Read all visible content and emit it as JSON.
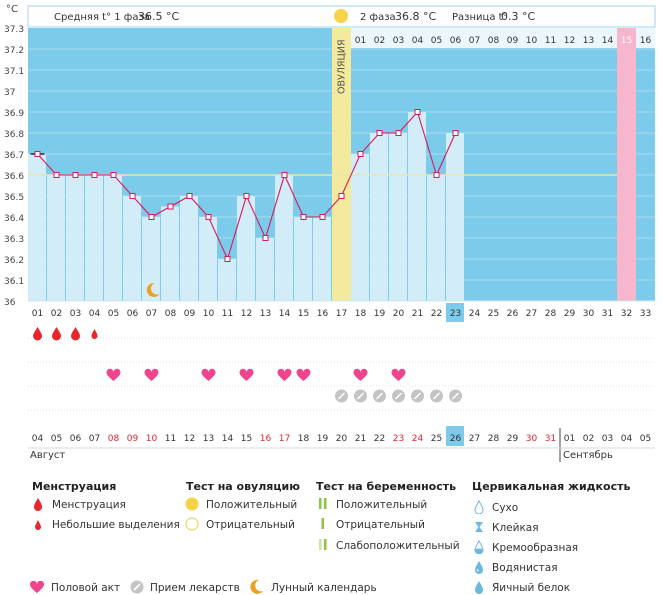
{
  "header": {
    "degree_unit": "°C",
    "phase1_label": "Средняя t° 1 фаза",
    "phase1_value": "36.5 °C",
    "phase2_label": "2 фаза",
    "phase2_value": "36.8 °C",
    "diff_label": "Разница t°",
    "diff_value": "0.3 °C"
  },
  "ovulation_label": "ОВУЛЯЦИЯ",
  "colors": {
    "chart_bg": "#7dcbea",
    "bar_fill": "#d2edf8",
    "line": "#d61a5c",
    "coverline": "#e8e8b0",
    "ovulation": "#f3ea9e",
    "period_expected": "#f7b6cb",
    "menstruation": "#e8272d",
    "heart": "#f0458c",
    "pill": "#c4c4c4",
    "moon": "#f0a020",
    "highlight": "#7dcbea"
  },
  "chart_data": {
    "type": "bar",
    "title": "",
    "ylabel": "°C",
    "ylim": [
      36.0,
      37.3
    ],
    "yticks": [
      "37.3",
      "37.2",
      "37.1",
      "37",
      "36.9",
      "36.8",
      "36.7",
      "36.6",
      "36.5",
      "36.4",
      "36.3",
      "36.2",
      "36.1",
      "36"
    ],
    "days": [
      "01",
      "02",
      "03",
      "04",
      "05",
      "06",
      "07",
      "08",
      "09",
      "10",
      "11",
      "12",
      "13",
      "14",
      "15",
      "16",
      "17",
      "18",
      "19",
      "20",
      "21",
      "22",
      "23",
      "24",
      "25",
      "26",
      "27",
      "28",
      "29",
      "30",
      "31",
      "32",
      "33"
    ],
    "values": [
      36.7,
      36.6,
      36.6,
      36.6,
      36.6,
      36.5,
      36.4,
      36.45,
      36.5,
      36.4,
      36.2,
      36.5,
      36.3,
      36.6,
      36.4,
      36.4,
      36.5,
      36.7,
      36.8,
      36.8,
      36.9,
      36.6,
      36.8,
      null,
      null,
      null,
      null,
      null,
      null,
      null,
      null,
      null,
      null
    ],
    "coverline": 36.6,
    "ovulation_day": "17",
    "highlight_day": "23",
    "phase2_days": [
      "01",
      "02",
      "03",
      "04",
      "05",
      "06",
      "07",
      "08",
      "09",
      "10",
      "11",
      "12",
      "13",
      "14",
      "15",
      "16"
    ],
    "expected_period_day": "32",
    "dates": [
      "04",
      "05",
      "06",
      "07",
      "08",
      "09",
      "10",
      "11",
      "12",
      "13",
      "14",
      "15",
      "16",
      "17",
      "18",
      "19",
      "20",
      "21",
      "22",
      "23",
      "24",
      "25",
      "26",
      "27",
      "28",
      "29",
      "30",
      "31",
      "01",
      "02",
      "03",
      "04",
      "05"
    ],
    "weekend_dates": [
      "08",
      "09",
      "10",
      "16",
      "17",
      "23",
      "24",
      "30",
      "31"
    ],
    "highlight_date": "26",
    "month_start": "Август",
    "month_next": "Сентябрь",
    "menstruation": {
      "01": "big",
      "02": "big",
      "03": "big",
      "04": "small"
    },
    "intercourse": [
      "05",
      "07",
      "10",
      "12",
      "14",
      "15",
      "18",
      "20"
    ],
    "medication": [
      "17",
      "18",
      "19",
      "20",
      "21",
      "22",
      "23"
    ],
    "moon": [
      "07"
    ]
  },
  "legend": {
    "menstruation": {
      "title": "Менструация",
      "items": [
        "Менструация",
        "Небольшие выделения"
      ]
    },
    "ovulation_test": {
      "title": "Тест на овуляцию",
      "items": [
        "Положительный",
        "Отрицательный"
      ]
    },
    "pregnancy_test": {
      "title": "Тест на беременность",
      "items": [
        "Положительный",
        "Отрицательный",
        "Слабоположительный"
      ]
    },
    "cervical": {
      "title": "Цервикальная жидкость",
      "items": [
        "Сухо",
        "Клейкая",
        "Кремообразная",
        "Водянистая",
        "Яичный белок"
      ]
    },
    "bottom": [
      "Половой акт",
      "Прием лекарств",
      "Лунный календарь"
    ]
  }
}
